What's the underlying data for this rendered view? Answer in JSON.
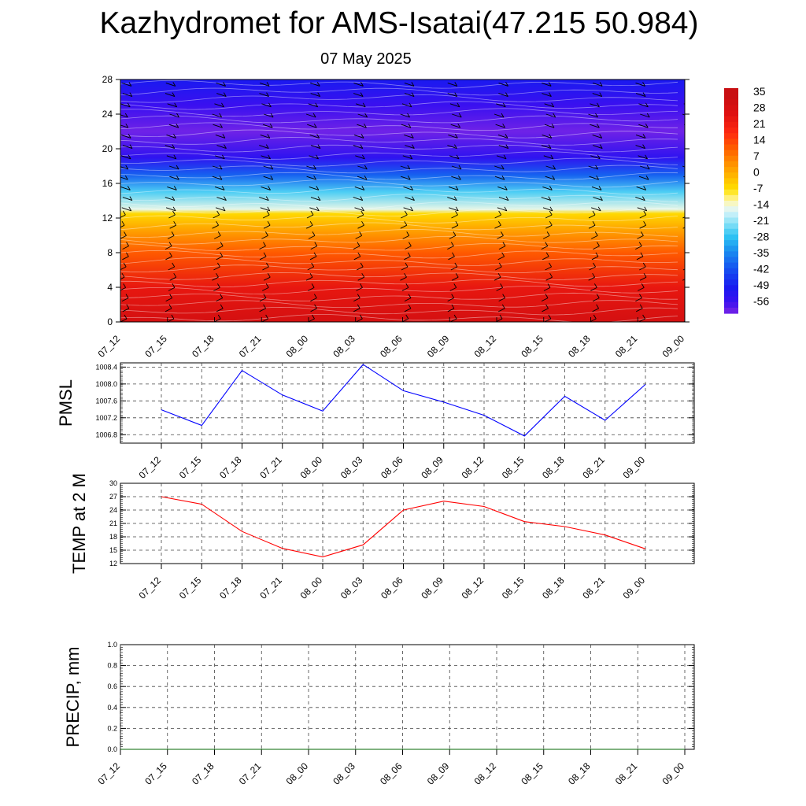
{
  "header": {
    "title": "Kazhydromet for AMS-Isatai(47.215 50.984)",
    "subtitle": "07 May 2025"
  },
  "chart_data": [
    {
      "type": "heatmap",
      "title": "",
      "xlabel": "",
      "ylabel": "",
      "categories": [
        "07_12",
        "07_15",
        "07_18",
        "07_21",
        "08_00",
        "08_03",
        "08_06",
        "08_09",
        "08_12",
        "08_15",
        "08_18",
        "08_21",
        "09_00"
      ],
      "y_ticks": [
        0,
        4,
        8,
        12,
        16,
        20,
        24,
        28
      ],
      "ylim": [
        0,
        28
      ],
      "colorbar": {
        "labels": [
          "35",
          "28",
          "21",
          "14",
          "7",
          "0",
          "-7",
          "-14",
          "-21",
          "-28",
          "-35",
          "-42",
          "-49",
          "-56"
        ],
        "colors": [
          "#f2aeb0",
          "#d9262b",
          "#f0201a",
          "#ff3b10",
          "#ff6a00",
          "#ff9a00",
          "#ffc800",
          "#fff27a",
          "#b8ecf7",
          "#2ec4f3",
          "#1d78f0",
          "#1b35f2",
          "#2018e6",
          "#6a2bf0"
        ]
      },
      "profile": [
        {
          "y": 0,
          "value": 30
        },
        {
          "y": 4,
          "value": 24
        },
        {
          "y": 8,
          "value": 12
        },
        {
          "y": 11,
          "value": 1
        },
        {
          "y": 12.5,
          "value": -5
        },
        {
          "y": 13,
          "value": -14
        },
        {
          "y": 15,
          "value": -24
        },
        {
          "y": 17,
          "value": -38
        },
        {
          "y": 19,
          "value": -52
        },
        {
          "y": 22,
          "value": -58
        },
        {
          "y": 25,
          "value": -54
        },
        {
          "y": 28,
          "value": -48
        }
      ],
      "wind_barbs": true,
      "grid": false
    },
    {
      "type": "line",
      "ylabel": "PMSL",
      "categories": [
        "07_12",
        "07_15",
        "07_18",
        "07_21",
        "08_00",
        "08_03",
        "08_06",
        "08_09",
        "08_12",
        "08_15",
        "08_18",
        "08_21",
        "09_00"
      ],
      "y_ticks": [
        "1006.8",
        "1007.2",
        "1007.6",
        "1008.0",
        "1008.4"
      ],
      "ylim": [
        1006.6,
        1008.5
      ],
      "series": [
        {
          "color": "#0000ff",
          "values": [
            1007.39,
            1007.02,
            1008.32,
            1007.74,
            1007.36,
            1008.46,
            1007.84,
            1007.57,
            1007.26,
            1006.77,
            1007.71,
            1007.14,
            1007.99
          ]
        }
      ],
      "grid": true
    },
    {
      "type": "line",
      "ylabel": "TEMP at 2 M",
      "categories": [
        "07_12",
        "07_15",
        "07_18",
        "07_21",
        "08_00",
        "08_03",
        "08_06",
        "08_09",
        "08_12",
        "08_15",
        "08_18",
        "08_21",
        "09_00"
      ],
      "y_ticks": [
        "12",
        "15",
        "18",
        "21",
        "24",
        "27",
        "30"
      ],
      "ylim": [
        12,
        30
      ],
      "series": [
        {
          "color": "#ff0000",
          "values": [
            27.0,
            25.3,
            19.2,
            15.4,
            13.5,
            16.2,
            24.0,
            26.0,
            24.8,
            21.4,
            20.3,
            18.4,
            15.3
          ]
        }
      ],
      "grid": true
    },
    {
      "type": "line",
      "ylabel": "PRECIP, mm",
      "categories": [
        "07_12",
        "07_15",
        "07_18",
        "07_21",
        "08_00",
        "08_03",
        "08_06",
        "08_09",
        "08_12",
        "08_15",
        "08_18",
        "08_21",
        "09_00"
      ],
      "y_ticks": [
        "0.0",
        "0.2",
        "0.4",
        "0.6",
        "0.8",
        "1.0"
      ],
      "ylim": [
        0,
        1
      ],
      "series": [
        {
          "color": "#006400",
          "values": [
            0,
            0,
            0,
            0,
            0,
            0,
            0,
            0,
            0,
            0,
            0,
            0,
            0
          ]
        }
      ],
      "grid": true
    }
  ]
}
